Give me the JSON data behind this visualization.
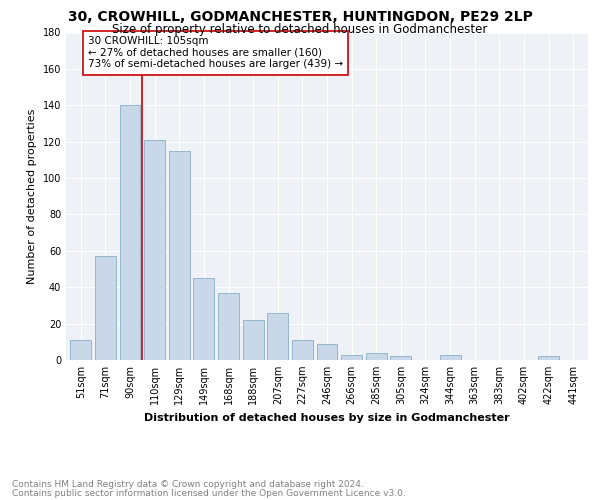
{
  "title": "30, CROWHILL, GODMANCHESTER, HUNTINGDON, PE29 2LP",
  "subtitle": "Size of property relative to detached houses in Godmanchester",
  "xlabel": "Distribution of detached houses by size in Godmanchester",
  "ylabel": "Number of detached properties",
  "categories": [
    "51sqm",
    "71sqm",
    "90sqm",
    "110sqm",
    "129sqm",
    "149sqm",
    "168sqm",
    "188sqm",
    "207sqm",
    "227sqm",
    "246sqm",
    "266sqm",
    "285sqm",
    "305sqm",
    "324sqm",
    "344sqm",
    "363sqm",
    "383sqm",
    "402sqm",
    "422sqm",
    "441sqm"
  ],
  "values": [
    11,
    57,
    140,
    121,
    115,
    45,
    37,
    22,
    26,
    11,
    9,
    3,
    4,
    2,
    0,
    3,
    0,
    0,
    0,
    2,
    0
  ],
  "bar_color": "#c8d8e8",
  "bar_edge_color": "#8bafc8",
  "vline_x": 3,
  "vline_color": "#cc0000",
  "annotation_text": "30 CROWHILL: 105sqm\n← 27% of detached houses are smaller (160)\n73% of semi-detached houses are larger (439) →",
  "annotation_box_color": "#ffffff",
  "annotation_box_edge_color": "#cc0000",
  "ylim": [
    0,
    180
  ],
  "yticks": [
    0,
    20,
    40,
    60,
    80,
    100,
    120,
    140,
    160,
    180
  ],
  "footer_line1": "Contains HM Land Registry data © Crown copyright and database right 2024.",
  "footer_line2": "Contains public sector information licensed under the Open Government Licence v3.0.",
  "background_color": "#ffffff",
  "plot_background_color": "#eef2f7",
  "title_fontsize": 10,
  "subtitle_fontsize": 8.5,
  "axis_label_fontsize": 8,
  "tick_fontsize": 7,
  "footer_fontsize": 6.5,
  "annotation_fontsize": 7.5
}
